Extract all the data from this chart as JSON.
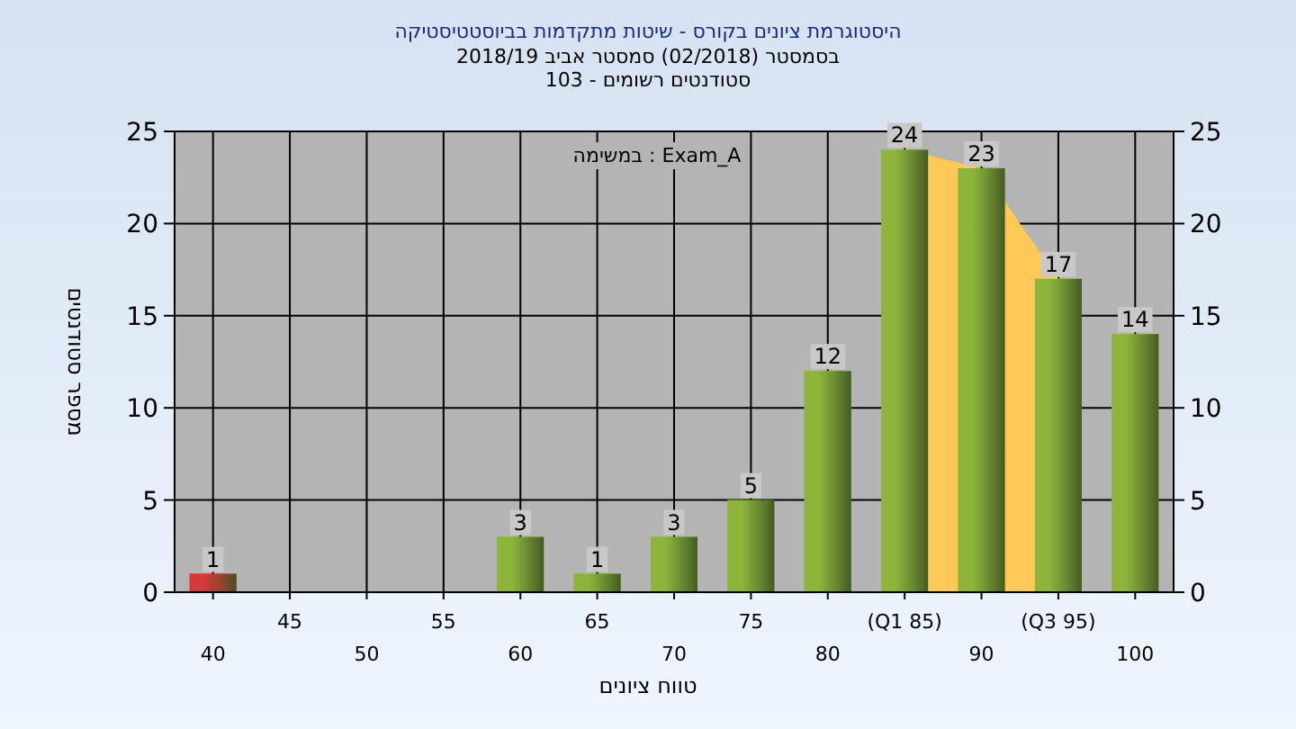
{
  "chart_data": {
    "type": "bar",
    "title": "היסטוגרמת ציונים בקורס - שיטות מתקדמות בביוסטטיסטיקה",
    "subtitle": "בסמסטר (02/2018) סמסטר אביב 2018/19\nסטודנטים רשומים - 103",
    "xlabel": "טווח ציונים",
    "ylabel": "מספר סטודנטים",
    "annotations": [
      "במשימה : Exam_A"
    ],
    "categories": [
      "40",
      "45",
      "50",
      "55",
      "60",
      "65",
      "70",
      "75",
      "80",
      "(Q1 85)",
      "90",
      "(Q3 95)",
      "100"
    ],
    "values": [
      1,
      0,
      0,
      0,
      3,
      1,
      3,
      5,
      12,
      24,
      23,
      17,
      14
    ],
    "value_labels": [
      "1",
      null,
      null,
      null,
      "3",
      "1",
      "3",
      "5",
      "12",
      "24",
      "23",
      "17",
      "14"
    ],
    "colors": [
      "#d43a3a",
      "#8db53c",
      "#8db53c",
      "#8db53c",
      "#8db53c",
      "#8db53c",
      "#8db53c",
      "#8db53c",
      "#8db53c",
      "#8db53c",
      "#8db53c",
      "#8db53c",
      "#8db53c"
    ],
    "bands": [
      {
        "axis": "x",
        "from": "(Q1 85)",
        "to": "(Q3 95)",
        "color": "#ffc857"
      }
    ],
    "ylim": [
      0,
      25
    ],
    "yticks": [
      0,
      5,
      10,
      15,
      20,
      25
    ],
    "y2lim": [
      0,
      25
    ],
    "y2ticks": [
      0,
      5,
      10,
      15,
      20,
      25
    ],
    "grid": true
  }
}
